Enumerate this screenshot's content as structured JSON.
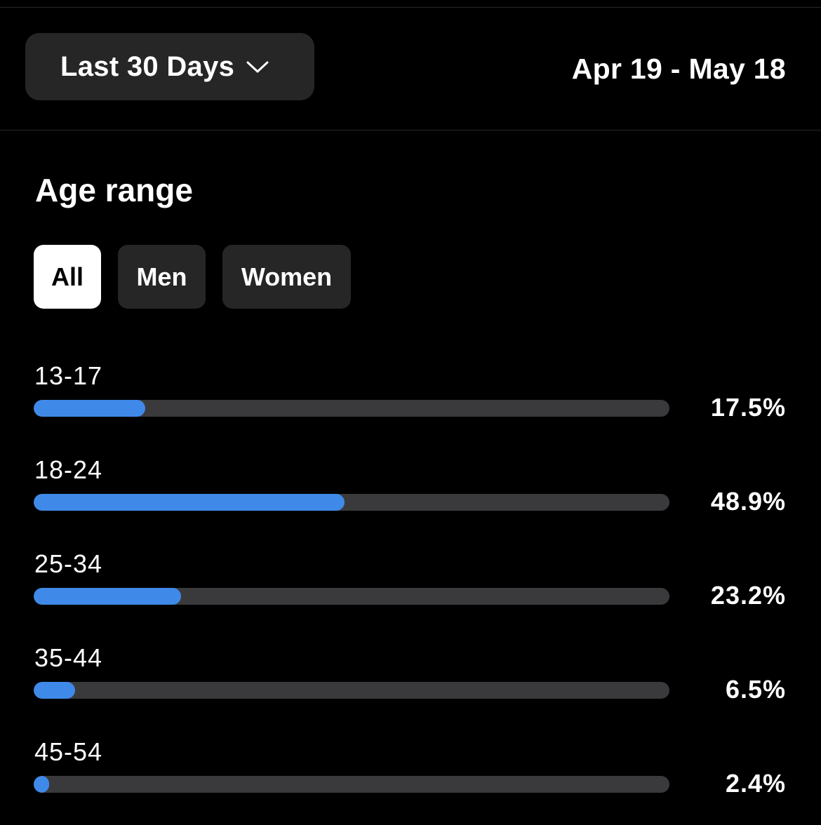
{
  "header": {
    "range_select": {
      "label": "Last 30 Days",
      "icon": "chevron-down-icon"
    },
    "date_range": "Apr 19 - May 18"
  },
  "section": {
    "title": "Age range",
    "tabs": [
      {
        "label": "All",
        "active": true
      },
      {
        "label": "Men",
        "active": false
      },
      {
        "label": "Women",
        "active": false
      }
    ]
  },
  "colors": {
    "background": "#000000",
    "bar_fill": "#3f8ae8",
    "bar_track": "#3a3a3c",
    "button_bg": "#262626"
  },
  "chart_data": {
    "type": "bar",
    "categories": [
      "13-17",
      "18-24",
      "25-34",
      "35-44",
      "45-54"
    ],
    "values": [
      17.5,
      48.9,
      23.2,
      6.5,
      2.4
    ],
    "value_labels": [
      "17.5%",
      "48.9%",
      "23.2%",
      "6.5%",
      "2.4%"
    ],
    "max_value": 100
  }
}
